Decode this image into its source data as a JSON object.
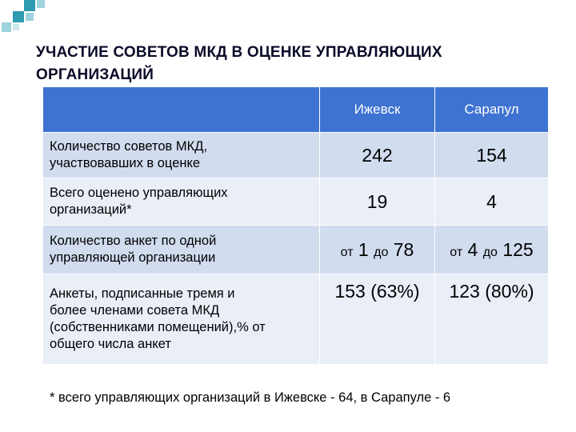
{
  "title_line1": "УЧАСТИЕ СОВЕТОВ МКД В ОЦЕНКЕ УПРАВЛЯЮЩИХ",
  "title_line2": "ОРГАНИЗАЦИЙ",
  "columns": [
    "Ижевск",
    "Сарапул"
  ],
  "rows": [
    {
      "label_line1": "Количество советов МКД,",
      "label_line2": "участвовавших в оценке",
      "izhevsk": "242",
      "sarapul": "154"
    },
    {
      "label_line1": "Всего оценено управляющих",
      "label_line2": "организаций*",
      "izhevsk": "19",
      "sarapul": "4"
    },
    {
      "label_line1": "Количество анкет по одной",
      "label_line2": "управляющей организации",
      "izhevsk": {
        "from": "от",
        "a": "1",
        "to": "до",
        "b": "78"
      },
      "sarapul": {
        "from": "от",
        "a": "4",
        "to": "до",
        "b": "125"
      }
    },
    {
      "label_lines": [
        "Анкеты, подписанные тремя и",
        "более членами совета МКД",
        "(собственниками помещений),% от",
        "общего числа анкет"
      ],
      "izhevsk": "153 (63%)",
      "sarapul": "123 (80%)"
    }
  ],
  "footnote": "* всего управляющих организаций в Ижевске - 64, в Сарапуле - 6",
  "colors": {
    "header": "#3e73d2",
    "row_dark": "#d1dcef",
    "row_light": "#e9eef7",
    "deco_dark": "#2e9bb0",
    "deco_light": "#9fd3dd"
  }
}
